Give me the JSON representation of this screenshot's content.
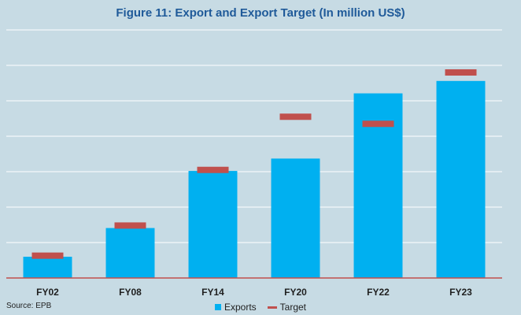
{
  "title": "Figure 11: Export and Export Target (In million US$)",
  "source": "Source: EPB",
  "colors": {
    "background": "#c7dbe4",
    "exports": "#00b0f0",
    "target": "#c0504d",
    "grid": "#ffffff",
    "axis": "#c0504d",
    "title": "#1f5a99"
  },
  "legend": {
    "exports_label": "Exports",
    "target_label": "Target"
  },
  "chart_data": {
    "type": "bar",
    "title": "Figure 11: Export and Export Target (In million US$)",
    "categories": [
      "FY02",
      "FY08",
      "FY14",
      "FY20",
      "FY22",
      "FY23"
    ],
    "series": [
      {
        "name": "Exports",
        "type": "bar",
        "values": [
          6.0,
          14.1,
          30.2,
          33.7,
          52.1,
          55.6
        ]
      },
      {
        "name": "Target",
        "type": "marker",
        "values": [
          6.3,
          14.8,
          30.5,
          45.5,
          43.5,
          58.0
        ]
      }
    ],
    "ylim": [
      0,
      70
    ],
    "grid": true,
    "y_tick_labels_shown": false,
    "legend_position": "bottom"
  }
}
